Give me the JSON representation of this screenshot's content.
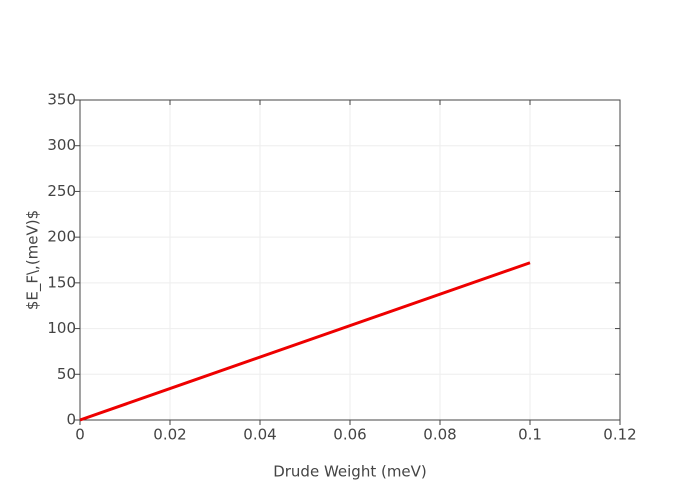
{
  "chart_data": {
    "type": "line",
    "x_label": "Drude Weight (meV)",
    "y_label": "$E_F\\,(meV)$",
    "x": [
      0,
      0.1
    ],
    "series": [
      {
        "color": "#ee0000",
        "values": [
          0,
          172
        ]
      }
    ],
    "xlim": [
      0,
      0.12
    ],
    "xticks": [
      0,
      0.02,
      0.04,
      0.06,
      0.08,
      0.1,
      0.12
    ],
    "ylim": [
      0,
      350
    ],
    "yticks": [
      0,
      50,
      100,
      150,
      200,
      250,
      300,
      350
    ],
    "grid": true
  }
}
